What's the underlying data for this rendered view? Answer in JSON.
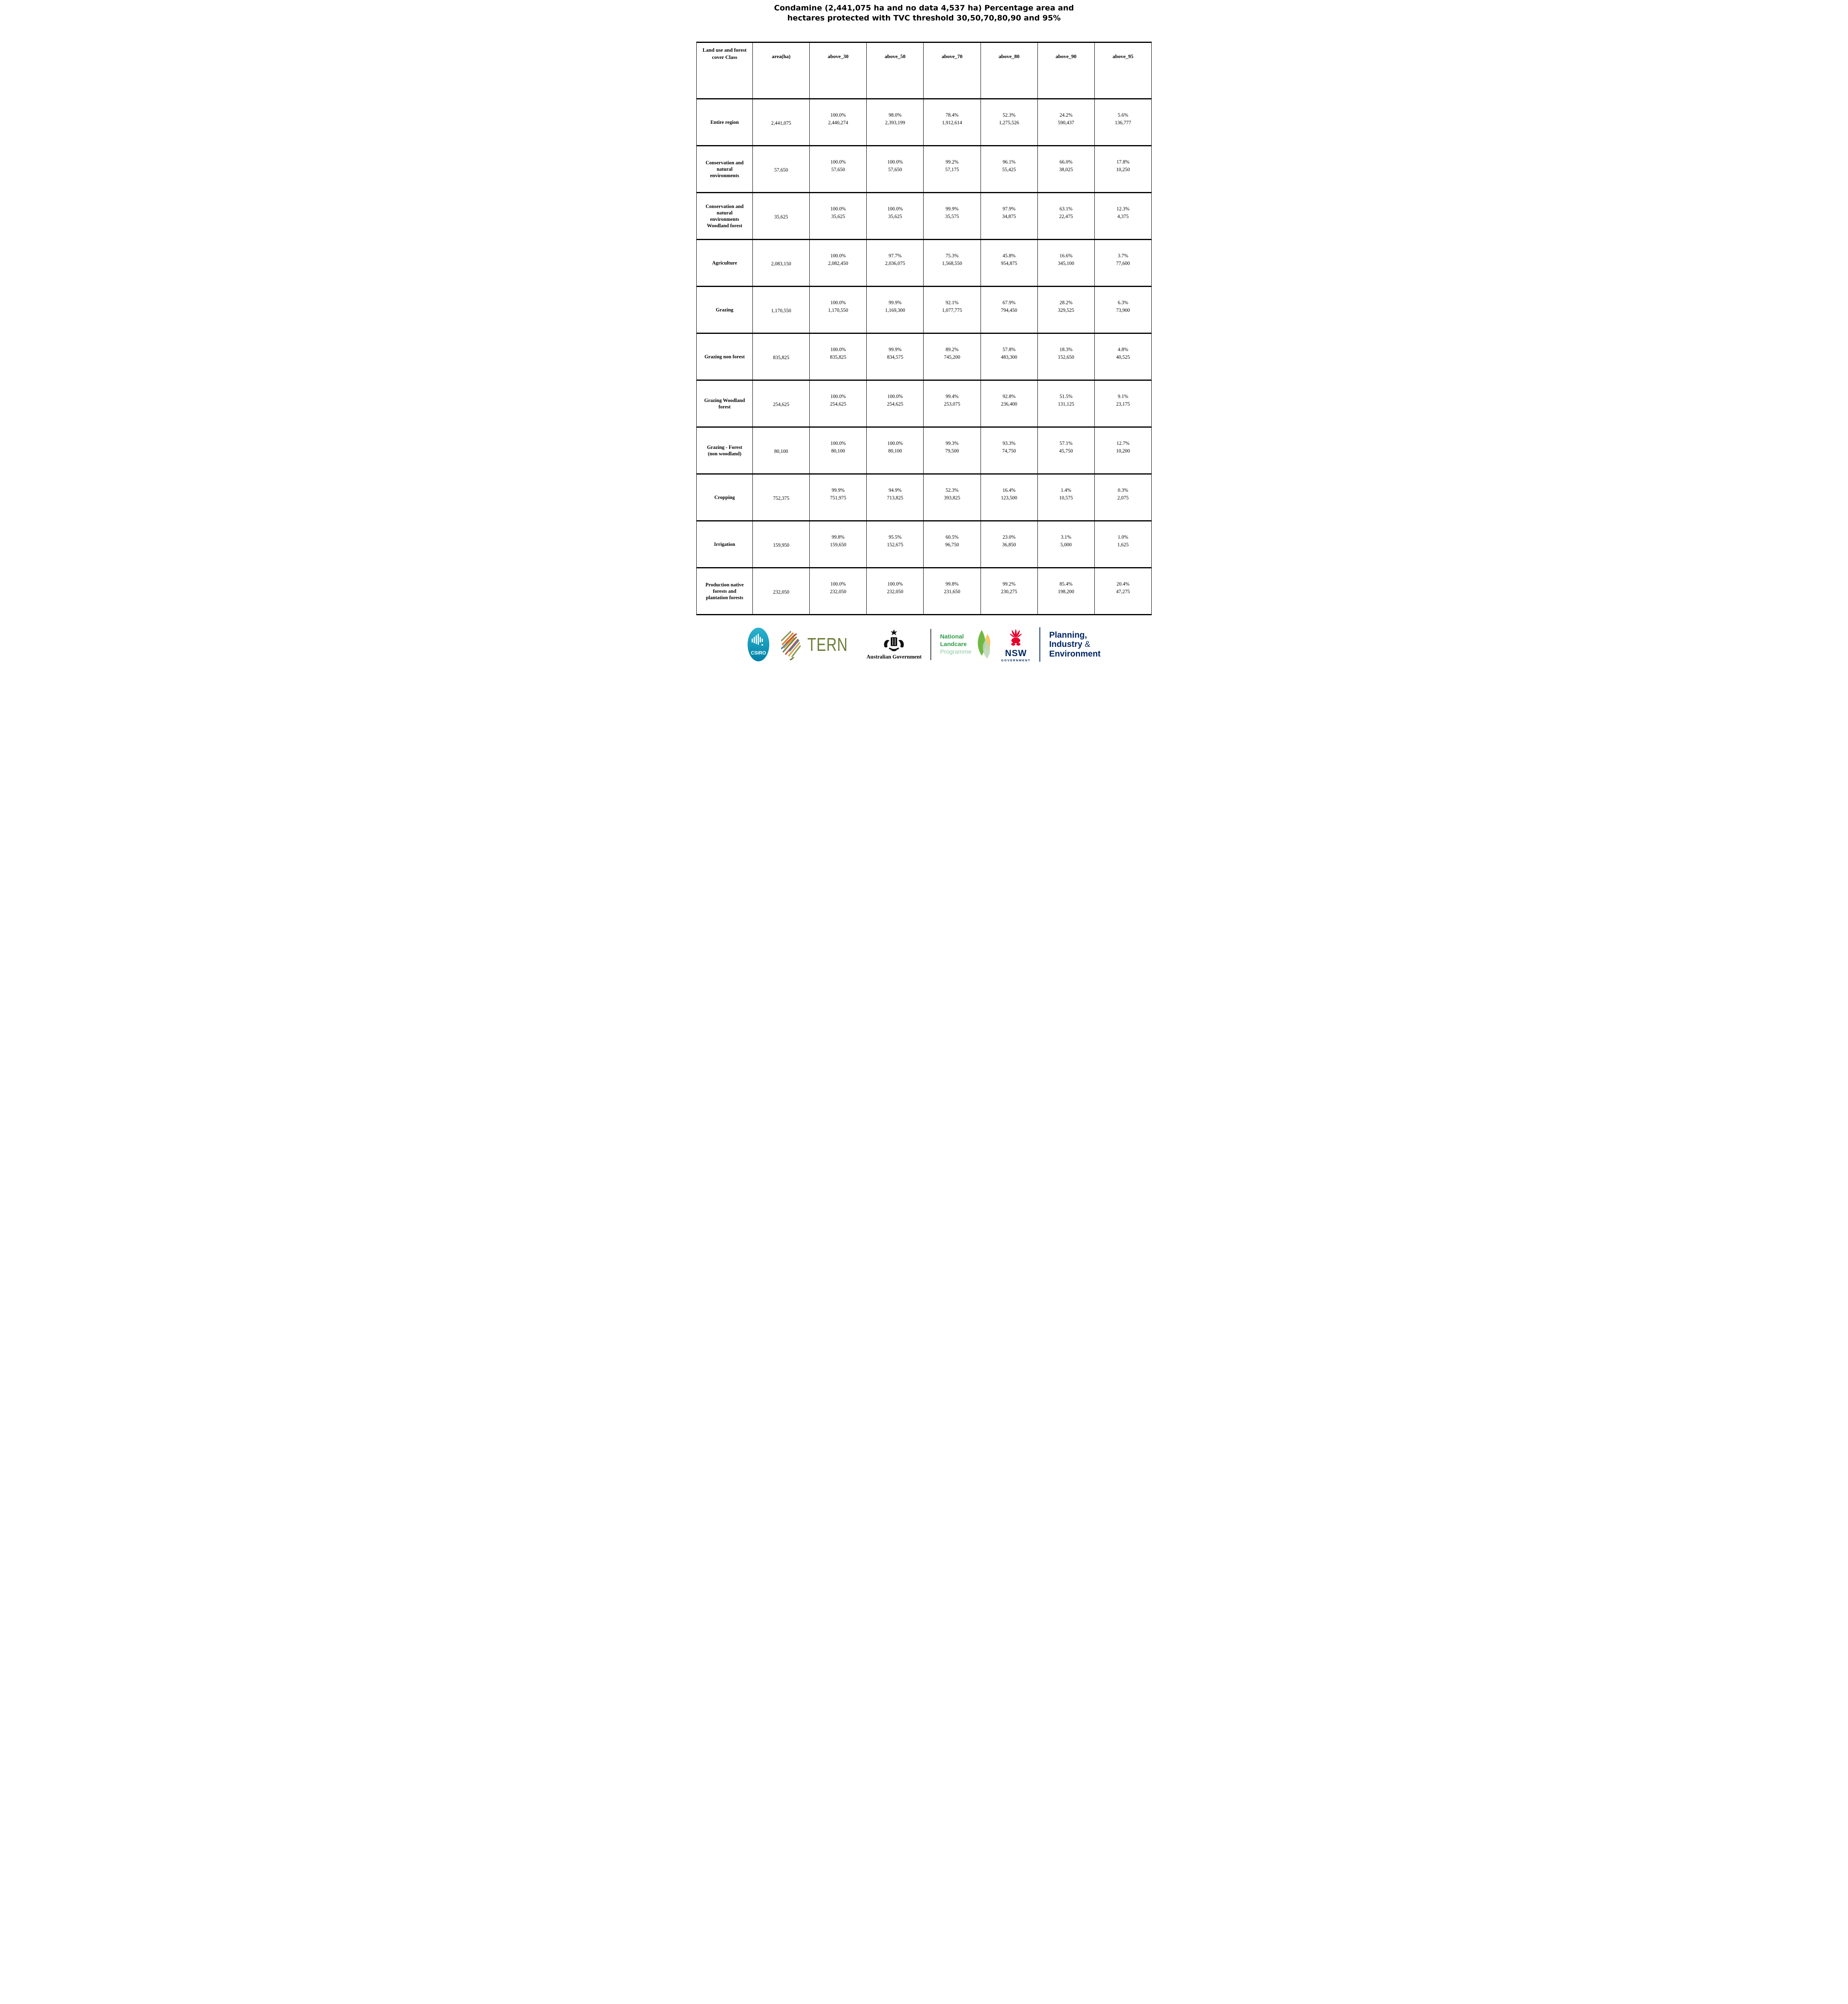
{
  "title": {
    "line1": "Condamine (2,441,075 ha and no data 4,537 ha) Percentage area and",
    "line2": "hectares protected with TVC threshold 30,50,70,80,90 and 95%"
  },
  "table": {
    "columns": [
      "Land use and forest cover Class",
      "area(ha)",
      "above_30",
      "above_50",
      "above_70",
      "above_80",
      "above_90",
      "above_95"
    ],
    "rows": [
      {
        "label": "Entire region",
        "area": "2,441,075",
        "values": [
          [
            "100.0%",
            "2,440,274"
          ],
          [
            "98.0%",
            "2,393,199"
          ],
          [
            "78.4%",
            "1,912,614"
          ],
          [
            "52.3%",
            "1,275,526"
          ],
          [
            "24.2%",
            "590,437"
          ],
          [
            "5.6%",
            "136,777"
          ]
        ]
      },
      {
        "label": "Conservation and natural environments",
        "area": "57,650",
        "values": [
          [
            "100.0%",
            "57,650"
          ],
          [
            "100.0%",
            "57,650"
          ],
          [
            "99.2%",
            "57,175"
          ],
          [
            "96.1%",
            "55,425"
          ],
          [
            "66.0%",
            "38,025"
          ],
          [
            "17.8%",
            "10,250"
          ]
        ]
      },
      {
        "label": "Conservation and natural environments Woodland forest",
        "area": "35,625",
        "values": [
          [
            "100.0%",
            "35,625"
          ],
          [
            "100.0%",
            "35,625"
          ],
          [
            "99.9%",
            "35,575"
          ],
          [
            "97.9%",
            "34,875"
          ],
          [
            "63.1%",
            "22,475"
          ],
          [
            "12.3%",
            "4,375"
          ]
        ]
      },
      {
        "label": "Agriculture",
        "area": "2,083,150",
        "values": [
          [
            "100.0%",
            "2,082,450"
          ],
          [
            "97.7%",
            "2,036,075"
          ],
          [
            "75.3%",
            "1,568,550"
          ],
          [
            "45.8%",
            "954,875"
          ],
          [
            "16.6%",
            "345,100"
          ],
          [
            "3.7%",
            "77,600"
          ]
        ]
      },
      {
        "label": "Grazing",
        "area": "1,170,550",
        "values": [
          [
            "100.0%",
            "1,170,550"
          ],
          [
            "99.9%",
            "1,169,300"
          ],
          [
            "92.1%",
            "1,077,775"
          ],
          [
            "67.9%",
            "794,450"
          ],
          [
            "28.2%",
            "329,525"
          ],
          [
            "6.3%",
            "73,900"
          ]
        ]
      },
      {
        "label": "Grazing non forest",
        "area": "835,825",
        "values": [
          [
            "100.0%",
            "835,825"
          ],
          [
            "99.9%",
            "834,575"
          ],
          [
            "89.2%",
            "745,200"
          ],
          [
            "57.8%",
            "483,300"
          ],
          [
            "18.3%",
            "152,650"
          ],
          [
            "4.8%",
            "40,525"
          ]
        ]
      },
      {
        "label": "Grazing Woodland forest",
        "area": "254,625",
        "values": [
          [
            "100.0%",
            "254,625"
          ],
          [
            "100.0%",
            "254,625"
          ],
          [
            "99.4%",
            "253,075"
          ],
          [
            "92.8%",
            "236,400"
          ],
          [
            "51.5%",
            "131,125"
          ],
          [
            "9.1%",
            "23,175"
          ]
        ]
      },
      {
        "label": "Grazing - Forest (non woodland)",
        "area": "80,100",
        "values": [
          [
            "100.0%",
            "80,100"
          ],
          [
            "100.0%",
            "80,100"
          ],
          [
            "99.3%",
            "79,500"
          ],
          [
            "93.3%",
            "74,750"
          ],
          [
            "57.1%",
            "45,750"
          ],
          [
            "12.7%",
            "10,200"
          ]
        ]
      },
      {
        "label": "Cropping",
        "area": "752,375",
        "values": [
          [
            "99.9%",
            "751,975"
          ],
          [
            "94.9%",
            "713,825"
          ],
          [
            "52.3%",
            "393,825"
          ],
          [
            "16.4%",
            "123,500"
          ],
          [
            "1.4%",
            "10,575"
          ],
          [
            "0.3%",
            "2,075"
          ]
        ]
      },
      {
        "label": "Irrigation",
        "area": "159,950",
        "values": [
          [
            "99.8%",
            "159,650"
          ],
          [
            "95.5%",
            "152,675"
          ],
          [
            "60.5%",
            "96,750"
          ],
          [
            "23.0%",
            "36,850"
          ],
          [
            "3.1%",
            "5,000"
          ],
          [
            "1.0%",
            "1,625"
          ]
        ]
      },
      {
        "label": "Production native forests and plantation forests",
        "area": "232,050",
        "values": [
          [
            "100.0%",
            "232,050"
          ],
          [
            "100.0%",
            "232,050"
          ],
          [
            "99.8%",
            "231,650"
          ],
          [
            "99.2%",
            "230,275"
          ],
          [
            "85.4%",
            "198,200"
          ],
          [
            "20.4%",
            "47,275"
          ]
        ]
      }
    ]
  },
  "footer": {
    "csiro": {
      "label": "CSIRO"
    },
    "tern": {
      "label": "TERN"
    },
    "aus_gov": {
      "label": "Australian Government"
    },
    "landcare": {
      "line1": "National",
      "line2": "Landcare",
      "line3": "Programme"
    },
    "nsw": {
      "acronym": "NSW",
      "caption": "GOVERNMENT"
    },
    "department": {
      "line1": "Planning,",
      "line2": "Industry ",
      "line2_amp": "&",
      "line3": "Environment"
    }
  },
  "colors": {
    "csiro_teal_top": "#2EB3CF",
    "csiro_teal_bottom": "#0080A6",
    "tern_olive": "#6E7D3A",
    "landcare_green": "#2F9E49",
    "landcare_light_green": "#8CC9A3",
    "nsw_red": "#E4002B",
    "nsw_navy": "#002664",
    "crest_black": "#111111",
    "table_border": "#000000"
  }
}
